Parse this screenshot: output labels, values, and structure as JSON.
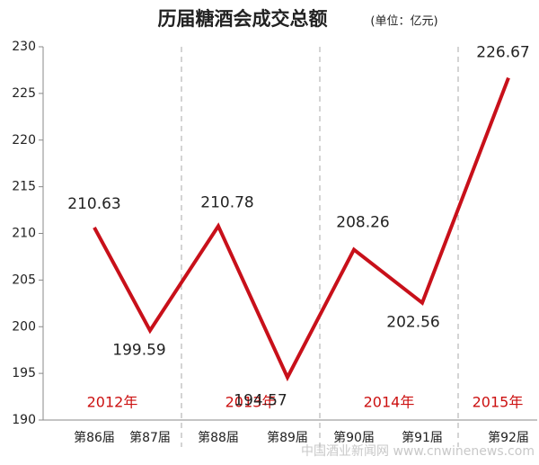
{
  "chart_data": {
    "type": "line",
    "title": "历届糖酒会成交总额",
    "subtitle": "(单位：亿元)",
    "categories": [
      "第86届",
      "第87届",
      "第88届",
      "第89届",
      "第90届",
      "第91届",
      "第92届"
    ],
    "values": [
      210.63,
      199.59,
      210.78,
      194.57,
      208.26,
      202.56,
      226.67
    ],
    "color": "#c8101a",
    "years": [
      "2012年",
      "2013年",
      "2014年",
      "2015年"
    ],
    "ylim": [
      190,
      230
    ],
    "yticks": [
      190,
      195,
      200,
      205,
      210,
      215,
      220,
      225,
      230
    ],
    "watermark": "中国酒业新闻网 www.cnwinenews.com"
  }
}
